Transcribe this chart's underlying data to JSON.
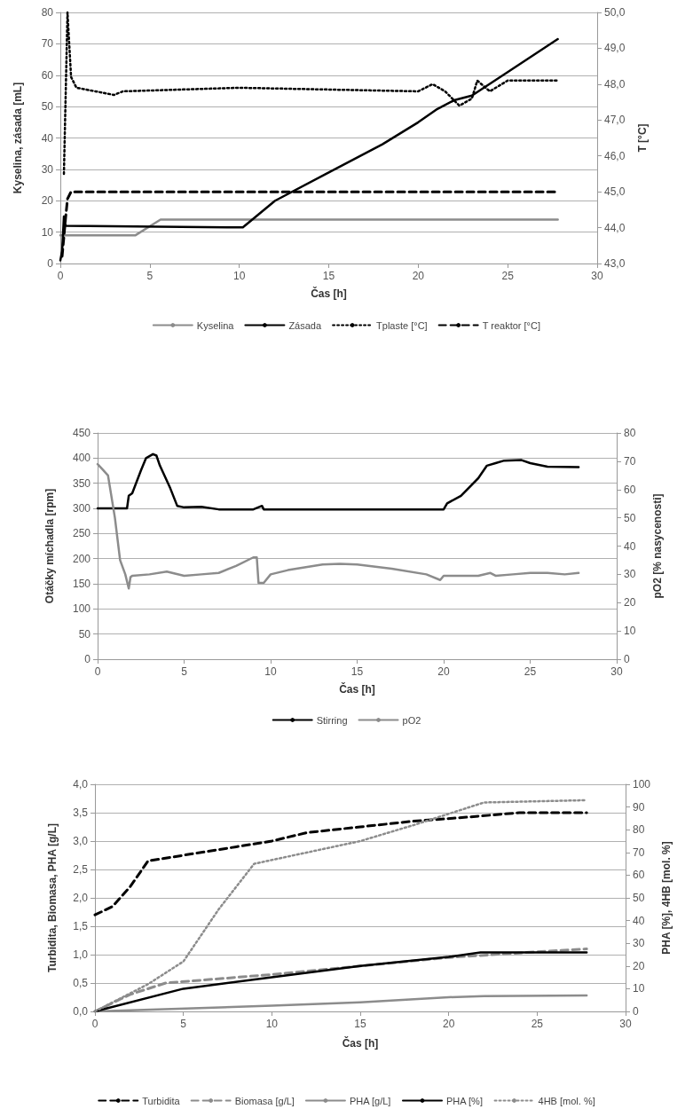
{
  "chart_data": [
    {
      "type": "line",
      "xlabel": "Čas [h]",
      "ylabel": "Kyselina, zásada [mL]",
      "y2label": "T [°C]",
      "xlim": [
        0,
        30
      ],
      "xticks": [
        0,
        5,
        10,
        15,
        20,
        25,
        30
      ],
      "ylim": [
        0,
        80
      ],
      "yticks": [
        0,
        10,
        20,
        30,
        40,
        50,
        60,
        70,
        80
      ],
      "y2lim": [
        43,
        50
      ],
      "y2ticks": [
        {
          "value": 43,
          "label": "43,0"
        },
        {
          "value": 44,
          "label": "44,0"
        },
        {
          "value": 45,
          "label": "45,0"
        },
        {
          "value": 46,
          "label": "46,0"
        },
        {
          "value": 47,
          "label": "47,0"
        },
        {
          "value": 48,
          "label": "48,0"
        },
        {
          "value": 49,
          "label": "49,0"
        },
        {
          "value": 50,
          "label": "50,0"
        }
      ],
      "grid": "y",
      "legend": "bottom",
      "marker": "none",
      "series": [
        {
          "name": "Kyselina",
          "color": "#8c8c8c",
          "line_style": "solid",
          "x": [
            0,
            4.2,
            5.6,
            27.8
          ],
          "values": [
            9,
            9,
            14,
            14
          ]
        },
        {
          "name": "Zásada",
          "color": "#000000",
          "line_style": "solid",
          "x": [
            0,
            0.1,
            0.2,
            0.3,
            10.2,
            12,
            15,
            18,
            20,
            21,
            22,
            23,
            25,
            27.8
          ],
          "values": [
            1,
            4,
            15,
            12,
            11.5,
            20,
            29,
            38,
            45,
            49,
            52,
            53.5,
            61,
            71.5
          ]
        },
        {
          "name": "Tplaste [°C]",
          "color": "#000000",
          "line_style": "dotted",
          "axis": "y2",
          "x": [
            0.2,
            0.4,
            0.6,
            0.9,
            3,
            3.5,
            10,
            20,
            20.8,
            21.5,
            22.3,
            23,
            23.3,
            24,
            25,
            27.8
          ],
          "values": [
            45.5,
            50.0,
            48.2,
            47.9,
            47.7,
            47.8,
            47.9,
            47.8,
            48.0,
            47.8,
            47.4,
            47.6,
            48.1,
            47.8,
            48.1,
            48.1
          ]
        },
        {
          "name": "T reaktor [°C]",
          "color": "#000000",
          "line_style": "dashed",
          "axis": "y2",
          "x": [
            0.1,
            0.3,
            0.4,
            0.6,
            27.8
          ],
          "values": [
            43.2,
            44.3,
            44.8,
            45.0,
            45.0
          ]
        }
      ]
    },
    {
      "type": "line",
      "xlabel": "Čas [h]",
      "ylabel": "Otáčky míchadla [rpm]",
      "y2label": "pO2 [% nasycenosti]",
      "xlim": [
        0,
        30
      ],
      "xticks": [
        0,
        5,
        10,
        15,
        20,
        25,
        30
      ],
      "ylim": [
        0,
        450
      ],
      "yticks": [
        0,
        50,
        100,
        150,
        200,
        250,
        300,
        350,
        400,
        450
      ],
      "y2lim": [
        0,
        80
      ],
      "y2ticks": [
        0,
        10,
        20,
        30,
        40,
        50,
        60,
        70,
        80
      ],
      "grid": "y",
      "legend": "bottom",
      "marker": "none",
      "series": [
        {
          "name": "Stirring",
          "color": "#000000",
          "line_style": "solid",
          "x": [
            0,
            1.7,
            1.8,
            2,
            2.5,
            2.8,
            3.2,
            3.4,
            3.6,
            4.2,
            4.6,
            5,
            6,
            7,
            9,
            9.5,
            9.6,
            20,
            20.2,
            21,
            22,
            22.5,
            23,
            23.5,
            24.5,
            25,
            26,
            27.8
          ],
          "values": [
            300,
            300,
            325,
            330,
            375,
            400,
            408,
            405,
            385,
            340,
            305,
            302,
            303,
            298,
            298,
            305,
            298,
            298,
            310,
            325,
            360,
            385,
            390,
            395,
            396,
            390,
            383,
            382
          ]
        },
        {
          "name": "pO2",
          "color": "#8c8c8c",
          "line_style": "solid",
          "axis": "y2",
          "x": [
            0,
            0.3,
            0.6,
            1,
            1.3,
            1.6,
            1.8,
            1.9,
            2,
            3,
            4,
            5,
            6,
            7,
            8,
            9,
            9.2,
            9.3,
            9.6,
            10,
            11,
            13,
            14,
            15,
            17,
            19,
            19.8,
            20,
            22,
            22.7,
            23,
            24,
            25,
            26,
            27,
            27.8
          ],
          "values": [
            69,
            67,
            65,
            50,
            35,
            30,
            25,
            29,
            29.5,
            30,
            31,
            29.5,
            30,
            30.5,
            33,
            36,
            36,
            27,
            27,
            30,
            31.5,
            33.5,
            33.7,
            33.5,
            32,
            30,
            28,
            29.5,
            29.5,
            30.5,
            29.5,
            30,
            30.5,
            30.5,
            30,
            30.5
          ]
        }
      ]
    },
    {
      "type": "line",
      "xlabel": "Čas [h]",
      "ylabel": "Turbidita, Biomasa, PHA [g/L]",
      "y2label": "PHA [%], 4HB [mol. %]",
      "xlim": [
        0,
        30
      ],
      "xticks": [
        0,
        5,
        10,
        15,
        20,
        25,
        30
      ],
      "ylim": [
        0,
        4
      ],
      "yticks": [
        {
          "value": 0,
          "label": "0,0"
        },
        {
          "value": 0.5,
          "label": "0,5"
        },
        {
          "value": 1,
          "label": "1,0"
        },
        {
          "value": 1.5,
          "label": "1,5"
        },
        {
          "value": 2,
          "label": "2,0"
        },
        {
          "value": 2.5,
          "label": "2,5"
        },
        {
          "value": 3,
          "label": "3,0"
        },
        {
          "value": 3.5,
          "label": "3,5"
        },
        {
          "value": 4,
          "label": "4,0"
        }
      ],
      "y2lim": [
        0,
        100
      ],
      "y2ticks": [
        0,
        10,
        20,
        30,
        40,
        50,
        60,
        70,
        80,
        90,
        100
      ],
      "grid": "y",
      "legend": "bottom",
      "marker": "none",
      "series": [
        {
          "name": "Turbidita",
          "color": "#000000",
          "line_style": "dashed",
          "x": [
            0,
            1,
            2,
            3,
            5,
            8,
            10,
            12,
            15,
            18,
            21,
            24,
            27.8
          ],
          "values": [
            1.7,
            1.85,
            2.2,
            2.65,
            2.75,
            2.9,
            3.0,
            3.15,
            3.25,
            3.35,
            3.42,
            3.5,
            3.5
          ]
        },
        {
          "name": "Biomasa [g/L]",
          "color": "#8c8c8c",
          "line_style": "dashed",
          "x": [
            0,
            2,
            4,
            10,
            15,
            20,
            25,
            27.8
          ],
          "values": [
            0,
            0.3,
            0.5,
            0.65,
            0.8,
            0.95,
            1.05,
            1.1
          ]
        },
        {
          "name": "PHA [g/L]",
          "color": "#8c8c8c",
          "line_style": "solid",
          "x": [
            0,
            10,
            15,
            20,
            22,
            27.8
          ],
          "values": [
            0,
            0.1,
            0.16,
            0.25,
            0.27,
            0.28
          ]
        },
        {
          "name": "PHA [%]",
          "color": "#000000",
          "line_style": "solid",
          "axis": "y2",
          "x": [
            0,
            5,
            10,
            15,
            20,
            21.8,
            27.8
          ],
          "values": [
            0,
            10,
            15,
            20,
            24,
            26,
            26
          ]
        },
        {
          "name": "4HB [mol. %]",
          "color": "#8c8c8c",
          "line_style": "dotted",
          "axis": "y2",
          "x": [
            0,
            3,
            5,
            7,
            9,
            12,
            15,
            18,
            20,
            22,
            27.8
          ],
          "values": [
            0,
            12,
            22,
            45,
            65,
            70,
            75,
            82,
            87,
            92,
            93
          ]
        }
      ]
    }
  ]
}
